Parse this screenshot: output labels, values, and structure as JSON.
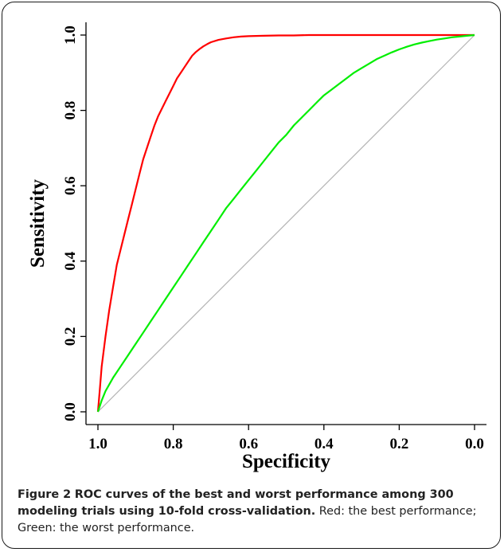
{
  "chart_data": {
    "type": "line",
    "title": "",
    "xlabel": "Specificity",
    "ylabel": "Sensitivity",
    "xlim": [
      1.0,
      0.0
    ],
    "ylim": [
      0.0,
      1.0
    ],
    "x_reversed": true,
    "x_ticks": [
      "1.0",
      "0.8",
      "0.6",
      "0.4",
      "0.2",
      "0.0"
    ],
    "y_ticks": [
      "0.0",
      "0.2",
      "0.4",
      "0.6",
      "0.8",
      "1.0"
    ],
    "grid": false,
    "legend": "none",
    "reference_line": {
      "x": [
        1.0,
        0.0
      ],
      "y": [
        0.0,
        1.0
      ],
      "color": "#b3b3b3"
    },
    "series": [
      {
        "color": "#ff0000",
        "x": [
          1.0,
          0.995,
          0.99,
          0.98,
          0.97,
          0.96,
          0.95,
          0.94,
          0.93,
          0.92,
          0.91,
          0.9,
          0.89,
          0.88,
          0.87,
          0.86,
          0.85,
          0.84,
          0.83,
          0.82,
          0.81,
          0.8,
          0.79,
          0.78,
          0.77,
          0.76,
          0.75,
          0.74,
          0.73,
          0.72,
          0.71,
          0.7,
          0.68,
          0.66,
          0.64,
          0.62,
          0.6,
          0.56,
          0.52,
          0.48,
          0.44,
          0.4,
          0.3,
          0.2,
          0.1,
          0.0
        ],
        "y": [
          0.0,
          0.06,
          0.12,
          0.2,
          0.27,
          0.33,
          0.39,
          0.43,
          0.47,
          0.51,
          0.55,
          0.59,
          0.63,
          0.67,
          0.7,
          0.73,
          0.76,
          0.785,
          0.805,
          0.825,
          0.845,
          0.865,
          0.885,
          0.9,
          0.915,
          0.93,
          0.945,
          0.955,
          0.963,
          0.97,
          0.976,
          0.981,
          0.987,
          0.991,
          0.994,
          0.996,
          0.997,
          0.998,
          0.999,
          0.999,
          1.0,
          1.0,
          1.0,
          1.0,
          1.0,
          1.0
        ]
      },
      {
        "color": "#00ee00",
        "x": [
          1.0,
          0.99,
          0.98,
          0.96,
          0.94,
          0.92,
          0.9,
          0.88,
          0.86,
          0.84,
          0.82,
          0.8,
          0.78,
          0.76,
          0.74,
          0.72,
          0.7,
          0.68,
          0.66,
          0.64,
          0.62,
          0.6,
          0.58,
          0.56,
          0.54,
          0.52,
          0.5,
          0.48,
          0.46,
          0.44,
          0.42,
          0.4,
          0.38,
          0.36,
          0.34,
          0.32,
          0.3,
          0.28,
          0.26,
          0.24,
          0.22,
          0.2,
          0.18,
          0.16,
          0.14,
          0.12,
          0.1,
          0.08,
          0.06,
          0.04,
          0.02,
          0.0
        ],
        "y": [
          0.0,
          0.03,
          0.055,
          0.09,
          0.12,
          0.15,
          0.18,
          0.21,
          0.24,
          0.27,
          0.3,
          0.33,
          0.36,
          0.39,
          0.42,
          0.45,
          0.48,
          0.51,
          0.54,
          0.565,
          0.59,
          0.615,
          0.64,
          0.665,
          0.69,
          0.715,
          0.735,
          0.76,
          0.78,
          0.8,
          0.82,
          0.84,
          0.855,
          0.87,
          0.885,
          0.9,
          0.912,
          0.924,
          0.936,
          0.945,
          0.954,
          0.962,
          0.969,
          0.975,
          0.98,
          0.984,
          0.988,
          0.991,
          0.994,
          0.996,
          0.998,
          1.0
        ]
      }
    ]
  },
  "caption": {
    "label": "Figure 2",
    "title": "ROC curves of the best and worst performance among 300 modeling trials using 10-fold cross-validation.",
    "text": "Red: the best performance; Green: the worst performance."
  }
}
